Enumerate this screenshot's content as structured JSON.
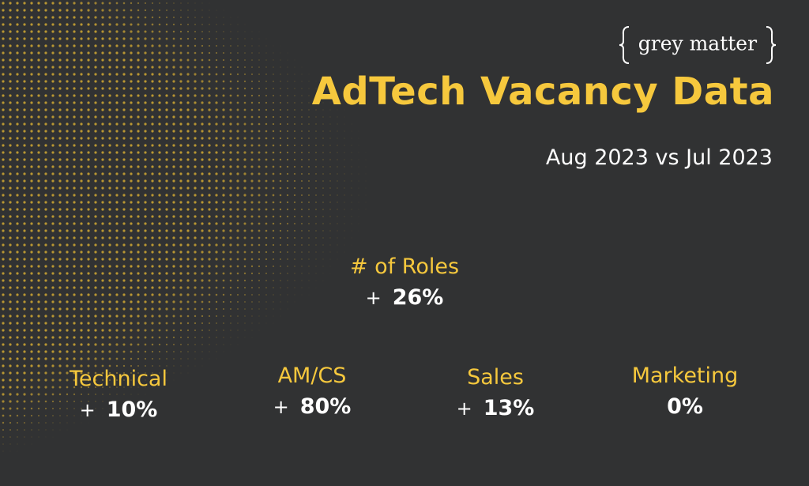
{
  "logo": "grey matter",
  "title": "AdTech Vacancy Data",
  "subtitle": "Aug 2023 vs Jul 2023",
  "metrics": [
    {
      "label": "# of Roles",
      "sign": "+",
      "value": "26%"
    },
    {
      "label": "Technical",
      "sign": "+",
      "value": "10%"
    },
    {
      "label": "AM/CS",
      "sign": "+",
      "value": "80%"
    },
    {
      "label": "Sales",
      "sign": "+",
      "value": "13%"
    },
    {
      "label": "Marketing",
      "value": "0%"
    }
  ]
}
